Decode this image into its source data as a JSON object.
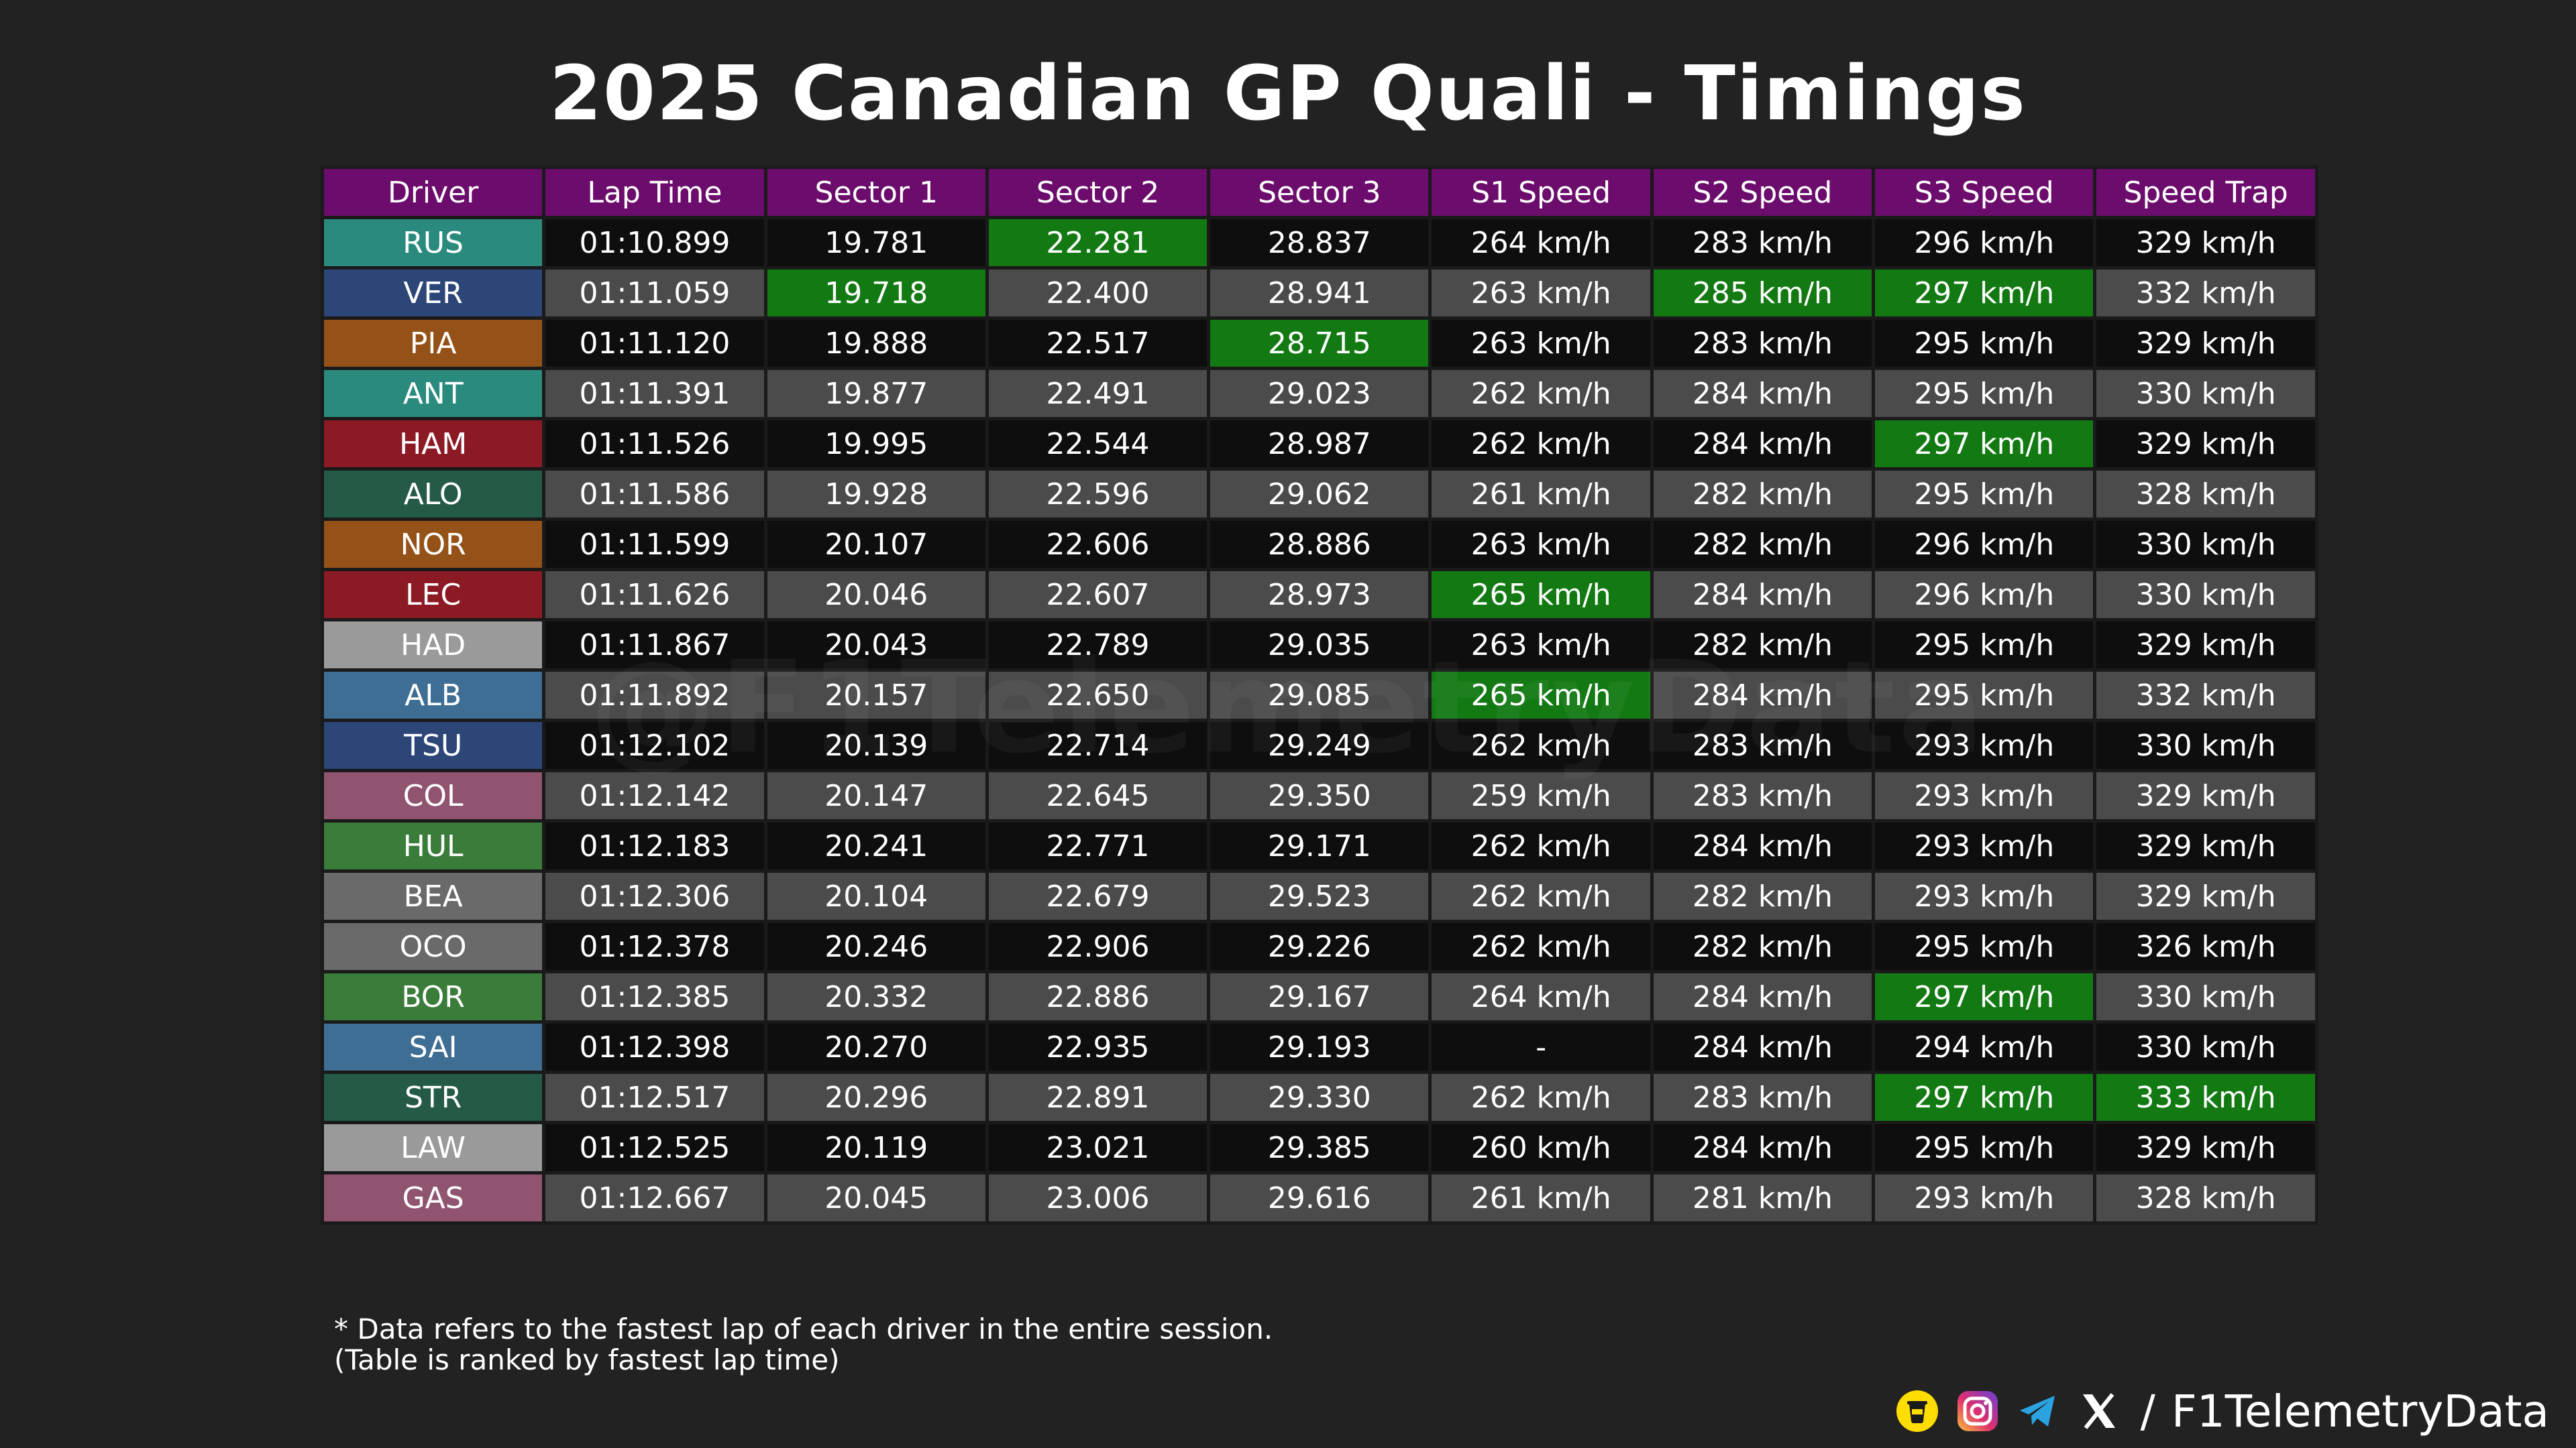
{
  "title": "2025 Canadian GP Quali - Timings",
  "watermark": "@F1TelemetryData",
  "colors": {
    "header_bg": "#6c0c6c",
    "best_bg": "#137a13",
    "row_dark": "#0e0e0e",
    "row_light": "#4b4b4b"
  },
  "chart_data": {
    "type": "table",
    "title": "2025 Canadian GP Quali - Timings",
    "columns": [
      "Driver",
      "Lap Time",
      "Sector 1",
      "Sector 2",
      "Sector 3",
      "S1 Speed",
      "S2 Speed",
      "S3 Speed",
      "Speed Trap"
    ],
    "rows": [
      {
        "driver": "RUS",
        "team_color": "#2a8a7e",
        "cells": [
          "01:10.899",
          "19.781",
          "22.281",
          "28.837",
          "264 km/h",
          "283 km/h",
          "296 km/h",
          "329 km/h"
        ],
        "best": [
          false,
          false,
          true,
          false,
          false,
          false,
          false,
          false
        ]
      },
      {
        "driver": "VER",
        "team_color": "#2c4677",
        "cells": [
          "01:11.059",
          "19.718",
          "22.400",
          "28.941",
          "263 km/h",
          "285 km/h",
          "297 km/h",
          "332 km/h"
        ],
        "best": [
          false,
          true,
          false,
          false,
          false,
          true,
          true,
          false
        ]
      },
      {
        "driver": "PIA",
        "team_color": "#955218",
        "cells": [
          "01:11.120",
          "19.888",
          "22.517",
          "28.715",
          "263 km/h",
          "283 km/h",
          "295 km/h",
          "329 km/h"
        ],
        "best": [
          false,
          false,
          false,
          true,
          false,
          false,
          false,
          false
        ]
      },
      {
        "driver": "ANT",
        "team_color": "#2a8a7e",
        "cells": [
          "01:11.391",
          "19.877",
          "22.491",
          "29.023",
          "262 km/h",
          "284 km/h",
          "295 km/h",
          "330 km/h"
        ],
        "best": [
          false,
          false,
          false,
          false,
          false,
          false,
          false,
          false
        ]
      },
      {
        "driver": "HAM",
        "team_color": "#8b1a24",
        "cells": [
          "01:11.526",
          "19.995",
          "22.544",
          "28.987",
          "262 km/h",
          "284 km/h",
          "297 km/h",
          "329 km/h"
        ],
        "best": [
          false,
          false,
          false,
          false,
          false,
          false,
          true,
          false
        ]
      },
      {
        "driver": "ALO",
        "team_color": "#245a46",
        "cells": [
          "01:11.586",
          "19.928",
          "22.596",
          "29.062",
          "261 km/h",
          "282 km/h",
          "295 km/h",
          "328 km/h"
        ],
        "best": [
          false,
          false,
          false,
          false,
          false,
          false,
          false,
          false
        ]
      },
      {
        "driver": "NOR",
        "team_color": "#955218",
        "cells": [
          "01:11.599",
          "20.107",
          "22.606",
          "28.886",
          "263 km/h",
          "282 km/h",
          "296 km/h",
          "330 km/h"
        ],
        "best": [
          false,
          false,
          false,
          false,
          false,
          false,
          false,
          false
        ]
      },
      {
        "driver": "LEC",
        "team_color": "#8b1a24",
        "cells": [
          "01:11.626",
          "20.046",
          "22.607",
          "28.973",
          "265 km/h",
          "284 km/h",
          "296 km/h",
          "330 km/h"
        ],
        "best": [
          false,
          false,
          false,
          false,
          true,
          false,
          false,
          false
        ]
      },
      {
        "driver": "HAD",
        "team_color": "#9a9a9a",
        "cells": [
          "01:11.867",
          "20.043",
          "22.789",
          "29.035",
          "263 km/h",
          "282 km/h",
          "295 km/h",
          "329 km/h"
        ],
        "best": [
          false,
          false,
          false,
          false,
          false,
          false,
          false,
          false
        ]
      },
      {
        "driver": "ALB",
        "team_color": "#3e6e93",
        "cells": [
          "01:11.892",
          "20.157",
          "22.650",
          "29.085",
          "265 km/h",
          "284 km/h",
          "295 km/h",
          "332 km/h"
        ],
        "best": [
          false,
          false,
          false,
          false,
          true,
          false,
          false,
          false
        ]
      },
      {
        "driver": "TSU",
        "team_color": "#2c4677",
        "cells": [
          "01:12.102",
          "20.139",
          "22.714",
          "29.249",
          "262 km/h",
          "283 km/h",
          "293 km/h",
          "330 km/h"
        ],
        "best": [
          false,
          false,
          false,
          false,
          false,
          false,
          false,
          false
        ]
      },
      {
        "driver": "COL",
        "team_color": "#915470",
        "cells": [
          "01:12.142",
          "20.147",
          "22.645",
          "29.350",
          "259 km/h",
          "283 km/h",
          "293 km/h",
          "329 km/h"
        ],
        "best": [
          false,
          false,
          false,
          false,
          false,
          false,
          false,
          false
        ]
      },
      {
        "driver": "HUL",
        "team_color": "#3a7c3a",
        "cells": [
          "01:12.183",
          "20.241",
          "22.771",
          "29.171",
          "262 km/h",
          "284 km/h",
          "293 km/h",
          "329 km/h"
        ],
        "best": [
          false,
          false,
          false,
          false,
          false,
          false,
          false,
          false
        ]
      },
      {
        "driver": "BEA",
        "team_color": "#6a6a6a",
        "cells": [
          "01:12.306",
          "20.104",
          "22.679",
          "29.523",
          "262 km/h",
          "282 km/h",
          "293 km/h",
          "329 km/h"
        ],
        "best": [
          false,
          false,
          false,
          false,
          false,
          false,
          false,
          false
        ]
      },
      {
        "driver": "OCO",
        "team_color": "#6a6a6a",
        "cells": [
          "01:12.378",
          "20.246",
          "22.906",
          "29.226",
          "262 km/h",
          "282 km/h",
          "295 km/h",
          "326 km/h"
        ],
        "best": [
          false,
          false,
          false,
          false,
          false,
          false,
          false,
          false
        ]
      },
      {
        "driver": "BOR",
        "team_color": "#3a7c3a",
        "cells": [
          "01:12.385",
          "20.332",
          "22.886",
          "29.167",
          "264 km/h",
          "284 km/h",
          "297 km/h",
          "330 km/h"
        ],
        "best": [
          false,
          false,
          false,
          false,
          false,
          false,
          true,
          false
        ]
      },
      {
        "driver": "SAI",
        "team_color": "#3e6e93",
        "cells": [
          "01:12.398",
          "20.270",
          "22.935",
          "29.193",
          "-",
          "284 km/h",
          "294 km/h",
          "330 km/h"
        ],
        "best": [
          false,
          false,
          false,
          false,
          false,
          false,
          false,
          false
        ]
      },
      {
        "driver": "STR",
        "team_color": "#245a46",
        "cells": [
          "01:12.517",
          "20.296",
          "22.891",
          "29.330",
          "262 km/h",
          "283 km/h",
          "297 km/h",
          "333 km/h"
        ],
        "best": [
          false,
          false,
          false,
          false,
          false,
          false,
          true,
          true
        ]
      },
      {
        "driver": "LAW",
        "team_color": "#9a9a9a",
        "cells": [
          "01:12.525",
          "20.119",
          "23.021",
          "29.385",
          "260 km/h",
          "284 km/h",
          "295 km/h",
          "329 km/h"
        ],
        "best": [
          false,
          false,
          false,
          false,
          false,
          false,
          false,
          false
        ]
      },
      {
        "driver": "GAS",
        "team_color": "#915470",
        "cells": [
          "01:12.667",
          "20.045",
          "23.006",
          "29.616",
          "261 km/h",
          "281 km/h",
          "293 km/h",
          "328 km/h"
        ],
        "best": [
          false,
          false,
          false,
          false,
          false,
          false,
          false,
          false
        ]
      }
    ]
  },
  "footnote": {
    "line1": "* Data refers to the fastest lap of each driver in the entire session.",
    "line2": "(Table is ranked by fastest lap time)"
  },
  "credit": {
    "icons": [
      "buymeacoffee-icon",
      "instagram-icon",
      "telegram-icon",
      "x-icon"
    ],
    "separator": "/",
    "handle": "F1TelemetryData"
  }
}
